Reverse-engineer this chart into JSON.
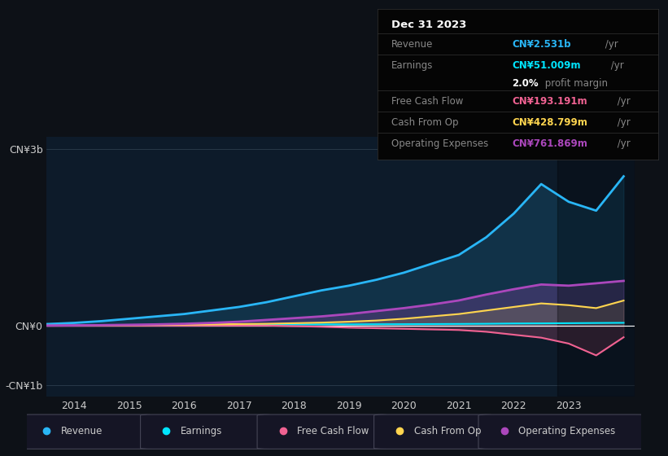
{
  "background_color": "#0d1117",
  "plot_bg_color": "#0d1b2a",
  "title": "Dec 31 2023",
  "ylabel_3b": "CN¥3b",
  "ylabel_0": "CN¥0",
  "ylabel_neg1b": "-CN¥1b",
  "ylim": [
    -1200,
    3200
  ],
  "xlim": [
    2013.5,
    2024.2
  ],
  "xticks": [
    2014,
    2015,
    2016,
    2017,
    2018,
    2019,
    2020,
    2021,
    2022,
    2023
  ],
  "colors": {
    "revenue": "#29b6f6",
    "earnings": "#00e5ff",
    "free_cash_flow": "#f06292",
    "cash_from_op": "#ffd54f",
    "operating_expenses": "#ab47bc"
  },
  "infobox_bg": "#050505",
  "line_color": "#333333"
}
